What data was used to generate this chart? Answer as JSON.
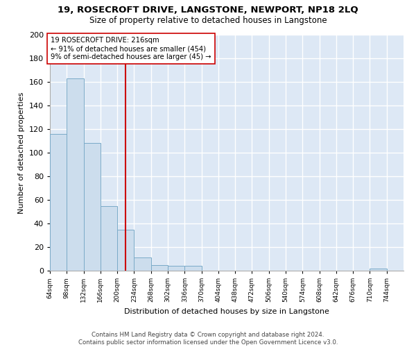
{
  "title": "19, ROSECROFT DRIVE, LANGSTONE, NEWPORT, NP18 2LQ",
  "subtitle": "Size of property relative to detached houses in Langstone",
  "xlabel": "Distribution of detached houses by size in Langstone",
  "ylabel": "Number of detached properties",
  "bar_color": "#ccdded",
  "bar_edge_color": "#7aaac8",
  "background_color": "#dde8f5",
  "fig_background": "#ffffff",
  "grid_color": "#ffffff",
  "bin_edges": [
    64,
    98,
    132,
    166,
    200,
    234,
    268,
    302,
    336,
    370,
    404,
    438,
    472,
    506,
    540,
    574,
    608,
    642,
    676,
    710,
    744
  ],
  "bin_labels": [
    "64sqm",
    "98sqm",
    "132sqm",
    "166sqm",
    "200sqm",
    "234sqm",
    "268sqm",
    "302sqm",
    "336sqm",
    "370sqm",
    "404sqm",
    "438sqm",
    "472sqm",
    "506sqm",
    "540sqm",
    "574sqm",
    "608sqm",
    "642sqm",
    "676sqm",
    "710sqm",
    "744sqm"
  ],
  "counts": [
    116,
    163,
    108,
    55,
    35,
    11,
    5,
    4,
    4,
    0,
    0,
    0,
    0,
    0,
    0,
    0,
    0,
    0,
    0,
    2
  ],
  "vline_x": 216,
  "vline_color": "#cc0000",
  "annotation_line1": "19 ROSECROFT DRIVE: 216sqm",
  "annotation_line2": "← 91% of detached houses are smaller (454)",
  "annotation_line3": "9% of semi-detached houses are larger (45) →",
  "annotation_box_color": "#ffffff",
  "annotation_box_edge": "#cc0000",
  "ylim": [
    0,
    200
  ],
  "yticks": [
    0,
    20,
    40,
    60,
    80,
    100,
    120,
    140,
    160,
    180,
    200
  ],
  "footnote_line1": "Contains HM Land Registry data © Crown copyright and database right 2024.",
  "footnote_line2": "Contains public sector information licensed under the Open Government Licence v3.0."
}
